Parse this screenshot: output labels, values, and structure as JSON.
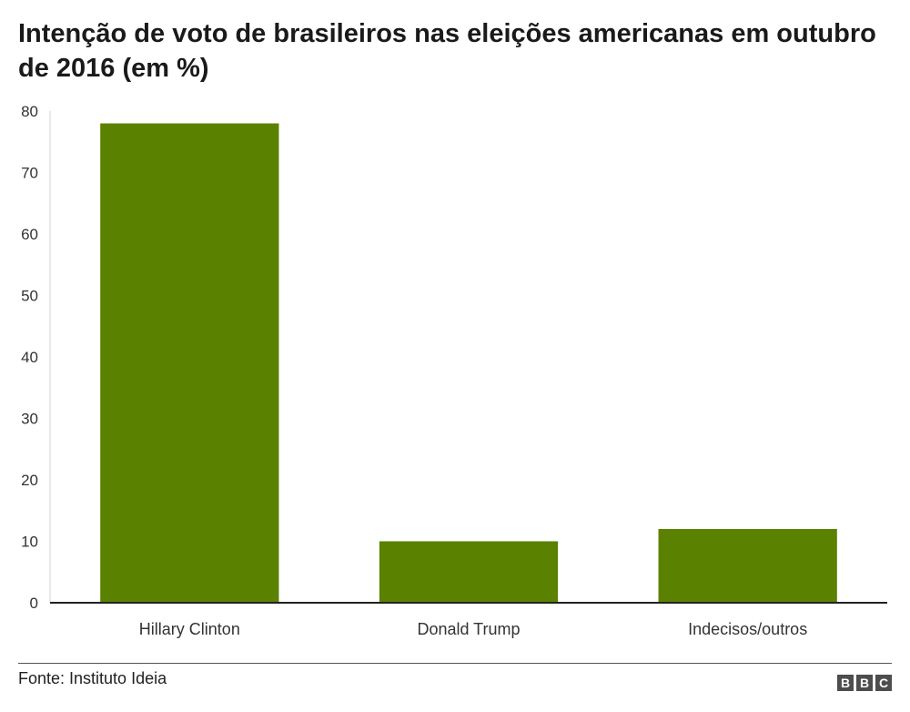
{
  "chart_data": {
    "type": "bar",
    "title": "Intenção de voto de brasileiros nas eleições americanas em outubro de 2016 (em %)",
    "categories": [
      "Hillary Clinton",
      "Donald Trump",
      "Indecisos/outros"
    ],
    "values": [
      78,
      10,
      12
    ],
    "ylim": [
      0,
      80
    ],
    "yticks": [
      0,
      10,
      20,
      30,
      40,
      50,
      60,
      70,
      80
    ],
    "grid": false,
    "bar_color": "#5a8200"
  },
  "footer": {
    "source": "Fonte: Instituto Ideia",
    "logo_letters": [
      "B",
      "B",
      "C"
    ]
  }
}
